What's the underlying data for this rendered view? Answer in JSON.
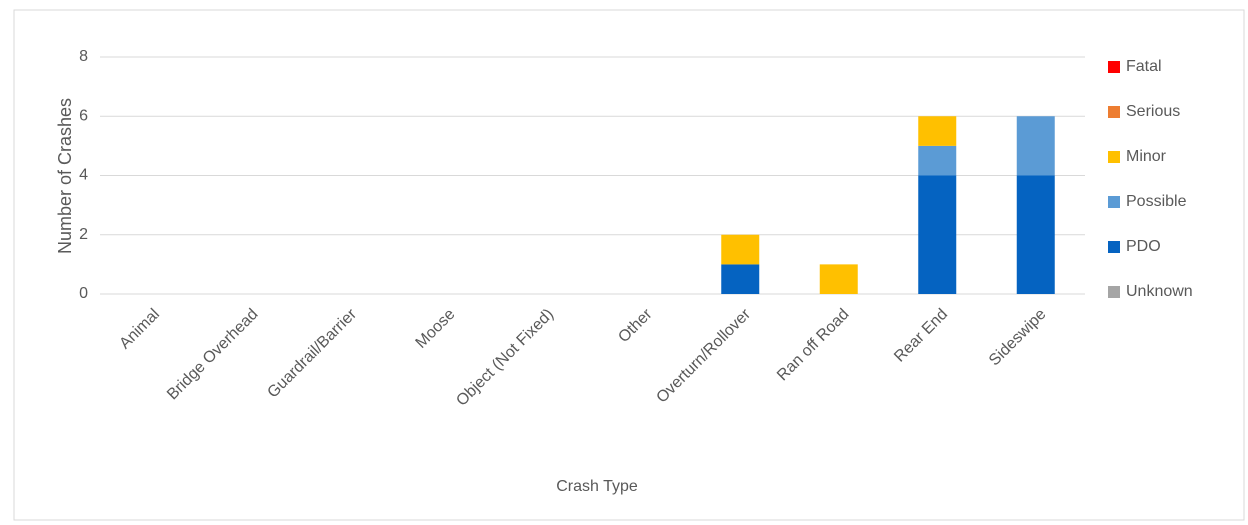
{
  "chart_data": {
    "type": "stacked_bar",
    "categories": [
      "Animal",
      "Bridge Overhead",
      "Guardrail/Barrier",
      "Moose",
      "Object (Not Fixed)",
      "Other",
      "Overturn/Rollover",
      "Ran off Road",
      "Rear End",
      "Sideswipe"
    ],
    "series": [
      {
        "name": "Unknown",
        "color": "#a5a5a5",
        "values": [
          0,
          0,
          0,
          0,
          0,
          0,
          0,
          0,
          0,
          0
        ]
      },
      {
        "name": "PDO",
        "color": "#0563c1",
        "values": [
          0,
          0,
          0,
          0,
          0,
          0,
          1,
          0,
          4,
          4
        ]
      },
      {
        "name": "Possible",
        "color": "#5b9bd5",
        "values": [
          0,
          0,
          0,
          0,
          0,
          0,
          0,
          0,
          1,
          2
        ]
      },
      {
        "name": "Minor",
        "color": "#ffc000",
        "values": [
          0,
          0,
          0,
          0,
          0,
          0,
          1,
          1,
          1,
          0
        ]
      },
      {
        "name": "Serious",
        "color": "#ed7d31",
        "values": [
          0,
          0,
          0,
          0,
          0,
          0,
          0,
          0,
          0,
          0
        ]
      },
      {
        "name": "Fatal",
        "color": "#ff0000",
        "values": [
          0,
          0,
          0,
          0,
          0,
          0,
          0,
          0,
          0,
          0
        ]
      }
    ],
    "xlabel": "Crash Type",
    "ylabel": "Number of Crashes",
    "ylim": [
      0,
      8
    ],
    "yticks": [
      0,
      2,
      4,
      6,
      8
    ],
    "grid": true,
    "legend": "right"
  }
}
